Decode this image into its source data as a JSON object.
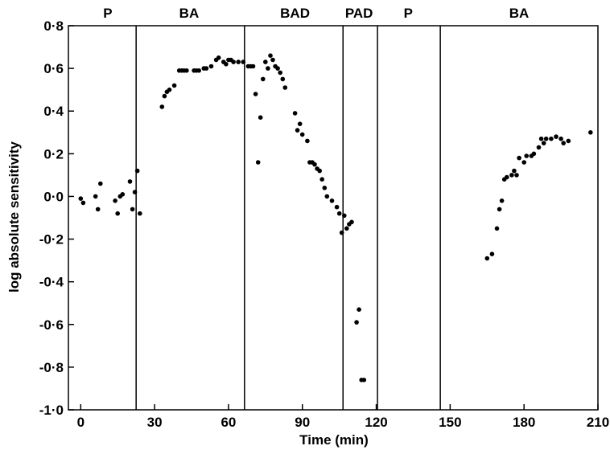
{
  "chart_data": {
    "type": "scatter",
    "title": "",
    "xlabel": "Time (min)",
    "ylabel": "log absolute sensitivity",
    "xlim": [
      -5,
      210
    ],
    "ylim": [
      -1.0,
      0.8
    ],
    "grid": false,
    "x_ticks": [
      {
        "value": 0,
        "label": "0"
      },
      {
        "value": 30,
        "label": "30"
      },
      {
        "value": 60,
        "label": "60"
      },
      {
        "value": 90,
        "label": "90"
      },
      {
        "value": 120,
        "label": "120"
      },
      {
        "value": 150,
        "label": "150"
      },
      {
        "value": 180,
        "label": "180"
      },
      {
        "value": 210,
        "label": "210"
      }
    ],
    "y_ticks": [
      {
        "value": 0.8,
        "label": "0·8"
      },
      {
        "value": 0.6,
        "label": "0·6"
      },
      {
        "value": 0.4,
        "label": "0·4"
      },
      {
        "value": 0.2,
        "label": "0·2"
      },
      {
        "value": 0.0,
        "label": "0·0"
      },
      {
        "value": -0.2,
        "label": "-0·2"
      },
      {
        "value": -0.4,
        "label": "-0·4"
      },
      {
        "value": -0.6,
        "label": "-0·6"
      },
      {
        "value": -0.8,
        "label": "-0·8"
      },
      {
        "value": -1.0,
        "label": "-1·0"
      }
    ],
    "phase_boundaries": [
      22.5,
      66.5,
      106.5,
      120.5,
      146
    ],
    "phases": [
      {
        "label": "P",
        "x": 11
      },
      {
        "label": "BA",
        "x": 44
      },
      {
        "label": "BAD",
        "x": 87
      },
      {
        "label": "PAD",
        "x": 113
      },
      {
        "label": "P",
        "x": 133
      },
      {
        "label": "BA",
        "x": 178
      }
    ],
    "points": [
      {
        "x": 0,
        "y": -0.01
      },
      {
        "x": 1,
        "y": -0.03
      },
      {
        "x": 6,
        "y": 0.0
      },
      {
        "x": 7,
        "y": -0.06
      },
      {
        "x": 8,
        "y": 0.06
      },
      {
        "x": 14,
        "y": -0.02
      },
      {
        "x": 15,
        "y": -0.08
      },
      {
        "x": 16,
        "y": 0.0
      },
      {
        "x": 17,
        "y": 0.01
      },
      {
        "x": 20,
        "y": 0.07
      },
      {
        "x": 21,
        "y": -0.06
      },
      {
        "x": 22,
        "y": 0.02
      },
      {
        "x": 23,
        "y": 0.12
      },
      {
        "x": 24,
        "y": -0.08
      },
      {
        "x": 33,
        "y": 0.42
      },
      {
        "x": 34,
        "y": 0.47
      },
      {
        "x": 35,
        "y": 0.49
      },
      {
        "x": 36,
        "y": 0.5
      },
      {
        "x": 38,
        "y": 0.52
      },
      {
        "x": 40,
        "y": 0.59
      },
      {
        "x": 41,
        "y": 0.59
      },
      {
        "x": 42,
        "y": 0.59
      },
      {
        "x": 43,
        "y": 0.59
      },
      {
        "x": 46,
        "y": 0.59
      },
      {
        "x": 47,
        "y": 0.59
      },
      {
        "x": 48,
        "y": 0.59
      },
      {
        "x": 50,
        "y": 0.6
      },
      {
        "x": 51,
        "y": 0.6
      },
      {
        "x": 53,
        "y": 0.61
      },
      {
        "x": 55,
        "y": 0.64
      },
      {
        "x": 56,
        "y": 0.65
      },
      {
        "x": 58,
        "y": 0.63
      },
      {
        "x": 59,
        "y": 0.62
      },
      {
        "x": 60,
        "y": 0.64
      },
      {
        "x": 61,
        "y": 0.64
      },
      {
        "x": 62,
        "y": 0.63
      },
      {
        "x": 64,
        "y": 0.63
      },
      {
        "x": 66,
        "y": 0.63
      },
      {
        "x": 68,
        "y": 0.61
      },
      {
        "x": 69,
        "y": 0.61
      },
      {
        "x": 70,
        "y": 0.61
      },
      {
        "x": 71,
        "y": 0.48
      },
      {
        "x": 72,
        "y": 0.16
      },
      {
        "x": 73,
        "y": 0.37
      },
      {
        "x": 74,
        "y": 0.55
      },
      {
        "x": 75,
        "y": 0.63
      },
      {
        "x": 76,
        "y": 0.6
      },
      {
        "x": 77,
        "y": 0.66
      },
      {
        "x": 78,
        "y": 0.64
      },
      {
        "x": 79,
        "y": 0.61
      },
      {
        "x": 80,
        "y": 0.6
      },
      {
        "x": 81,
        "y": 0.58
      },
      {
        "x": 82,
        "y": 0.55
      },
      {
        "x": 83,
        "y": 0.51
      },
      {
        "x": 87,
        "y": 0.39
      },
      {
        "x": 88,
        "y": 0.31
      },
      {
        "x": 89,
        "y": 0.34
      },
      {
        "x": 90,
        "y": 0.29
      },
      {
        "x": 92,
        "y": 0.26
      },
      {
        "x": 93,
        "y": 0.16
      },
      {
        "x": 94,
        "y": 0.16
      },
      {
        "x": 95,
        "y": 0.15
      },
      {
        "x": 96,
        "y": 0.13
      },
      {
        "x": 97,
        "y": 0.12
      },
      {
        "x": 98,
        "y": 0.08
      },
      {
        "x": 99,
        "y": 0.04
      },
      {
        "x": 100,
        "y": 0.0
      },
      {
        "x": 102,
        "y": -0.02
      },
      {
        "x": 104,
        "y": -0.05
      },
      {
        "x": 105,
        "y": -0.08
      },
      {
        "x": 106,
        "y": -0.17
      },
      {
        "x": 107,
        "y": -0.09
      },
      {
        "x": 108,
        "y": -0.15
      },
      {
        "x": 109,
        "y": -0.13
      },
      {
        "x": 110,
        "y": -0.12
      },
      {
        "x": 112,
        "y": -0.59
      },
      {
        "x": 113,
        "y": -0.53
      },
      {
        "x": 114,
        "y": -0.86
      },
      {
        "x": 115,
        "y": -0.86
      },
      {
        "x": 165,
        "y": -0.29
      },
      {
        "x": 167,
        "y": -0.27
      },
      {
        "x": 169,
        "y": -0.15
      },
      {
        "x": 170,
        "y": -0.06
      },
      {
        "x": 171,
        "y": -0.02
      },
      {
        "x": 172,
        "y": 0.08
      },
      {
        "x": 173,
        "y": 0.09
      },
      {
        "x": 175,
        "y": 0.1
      },
      {
        "x": 176,
        "y": 0.12
      },
      {
        "x": 177,
        "y": 0.1
      },
      {
        "x": 178,
        "y": 0.18
      },
      {
        "x": 180,
        "y": 0.16
      },
      {
        "x": 181,
        "y": 0.19
      },
      {
        "x": 183,
        "y": 0.19
      },
      {
        "x": 184,
        "y": 0.2
      },
      {
        "x": 186,
        "y": 0.23
      },
      {
        "x": 187,
        "y": 0.27
      },
      {
        "x": 188,
        "y": 0.25
      },
      {
        "x": 189,
        "y": 0.27
      },
      {
        "x": 191,
        "y": 0.27
      },
      {
        "x": 193,
        "y": 0.28
      },
      {
        "x": 195,
        "y": 0.27
      },
      {
        "x": 196,
        "y": 0.25
      },
      {
        "x": 198,
        "y": 0.26
      },
      {
        "x": 207,
        "y": 0.3
      }
    ]
  }
}
